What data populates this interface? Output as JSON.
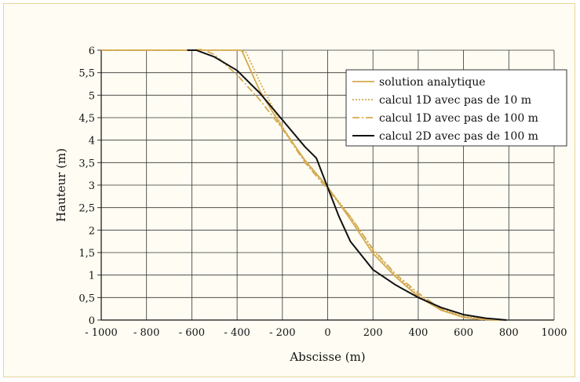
{
  "chart_data": {
    "type": "line",
    "xlabel": "Abscisse (m)",
    "ylabel": "Hauteur (m)",
    "xlim": [
      -1000,
      1000
    ],
    "ylim": [
      0,
      6
    ],
    "x_ticks": [
      "- 1000",
      "- 800",
      "- 600",
      "- 400",
      "- 200",
      "0",
      "200",
      "400",
      "600",
      "800",
      "1000"
    ],
    "y_ticks": [
      "0",
      "0,5",
      "1",
      "1,5",
      "2",
      "2,5",
      "3",
      "3,5",
      "4",
      "4,5",
      "5",
      "5,5",
      "6"
    ],
    "grid": true,
    "legend_position": "top-right",
    "colors": {
      "gold": "#d4aa52",
      "black": "#111111"
    },
    "series": [
      {
        "name": "solution analytique",
        "style": "solid",
        "color": "#d4aa52",
        "points": [
          [
            -1000,
            6
          ],
          [
            -400,
            6
          ],
          [
            -380,
            6
          ],
          [
            -300,
            5.1
          ],
          [
            -200,
            4.27
          ],
          [
            -100,
            3.55
          ],
          [
            0,
            2.96
          ],
          [
            100,
            2.24
          ],
          [
            200,
            1.48
          ],
          [
            300,
            0.96
          ],
          [
            400,
            0.52
          ],
          [
            500,
            0.22
          ],
          [
            600,
            0.06
          ],
          [
            700,
            0.01
          ],
          [
            760,
            0
          ]
        ]
      },
      {
        "name": "calcul 1D avec pas de 10 m",
        "style": "dotted",
        "color": "#d4aa52",
        "points": [
          [
            -1000,
            6
          ],
          [
            -390,
            6
          ],
          [
            -360,
            5.95
          ],
          [
            -300,
            5.3
          ],
          [
            -200,
            4.3
          ],
          [
            -100,
            3.52
          ],
          [
            0,
            2.95
          ],
          [
            100,
            2.3
          ],
          [
            200,
            1.55
          ],
          [
            300,
            1.0
          ],
          [
            400,
            0.55
          ],
          [
            500,
            0.25
          ],
          [
            600,
            0.08
          ],
          [
            700,
            0.01
          ],
          [
            750,
            0
          ]
        ]
      },
      {
        "name": "calcul 1D avec pas de 100 m",
        "style": "dashed",
        "color": "#d4aa52",
        "points": [
          [
            -1000,
            6
          ],
          [
            -600,
            6
          ],
          [
            -550,
            6.02
          ],
          [
            -500,
            5.9
          ],
          [
            -400,
            5.45
          ],
          [
            -300,
            4.9
          ],
          [
            -200,
            4.25
          ],
          [
            -100,
            3.5
          ],
          [
            0,
            2.9
          ],
          [
            100,
            2.3
          ],
          [
            200,
            1.58
          ],
          [
            300,
            1.02
          ],
          [
            400,
            0.6
          ],
          [
            500,
            0.25
          ],
          [
            600,
            0.06
          ],
          [
            700,
            0
          ],
          [
            780,
            0
          ]
        ]
      },
      {
        "name": "calcul 2D avec pas de 100 m",
        "style": "solid",
        "color": "#111111",
        "points": [
          [
            -620,
            6
          ],
          [
            -580,
            6
          ],
          [
            -500,
            5.85
          ],
          [
            -400,
            5.55
          ],
          [
            -300,
            5.05
          ],
          [
            -200,
            4.45
          ],
          [
            -100,
            3.85
          ],
          [
            -50,
            3.6
          ],
          [
            0,
            2.95
          ],
          [
            50,
            2.3
          ],
          [
            100,
            1.75
          ],
          [
            200,
            1.12
          ],
          [
            300,
            0.78
          ],
          [
            400,
            0.5
          ],
          [
            500,
            0.28
          ],
          [
            600,
            0.12
          ],
          [
            700,
            0.04
          ],
          [
            790,
            0
          ]
        ]
      }
    ]
  }
}
